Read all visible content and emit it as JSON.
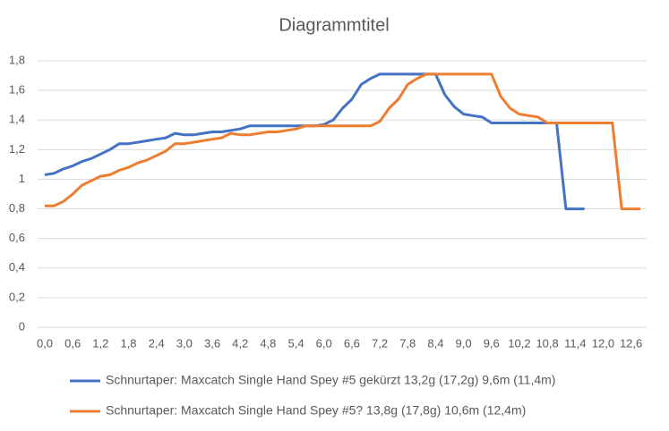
{
  "chart_data": {
    "type": "line",
    "title": "Diagrammtitel",
    "categories": [
      "0,0",
      null,
      null,
      "0,6",
      null,
      null,
      "1,2",
      null,
      null,
      "1,8",
      null,
      null,
      "2,4",
      null,
      null,
      "3,0",
      null,
      null,
      "3,6",
      null,
      null,
      "4,2",
      null,
      null,
      "4,8",
      null,
      null,
      "5,4",
      null,
      null,
      "6,0",
      null,
      null,
      "6,6",
      null,
      null,
      "7,2",
      null,
      null,
      "7,8",
      null,
      null,
      "8,4",
      null,
      null,
      "9,0",
      null,
      null,
      "9,6",
      null,
      null,
      "10,2",
      null,
      null,
      "10,8",
      null,
      null,
      "11,4",
      null,
      null,
      "12,0",
      null,
      null,
      "12,6",
      null
    ],
    "series": [
      {
        "name": "Schnurtaper: Maxcatch Single Hand Spey #5 gekürzt 13,2g (17,2g) 9,6m (11,4m)",
        "color": "#4472c4",
        "values": [
          1.03,
          1.04,
          1.07,
          1.09,
          1.12,
          1.14,
          1.17,
          1.2,
          1.24,
          1.24,
          1.25,
          1.26,
          1.27,
          1.28,
          1.31,
          1.3,
          1.3,
          1.31,
          1.32,
          1.32,
          1.33,
          1.34,
          1.36,
          1.36,
          1.36,
          1.36,
          1.36,
          1.36,
          1.36,
          1.36,
          1.37,
          1.4,
          1.48,
          1.54,
          1.64,
          1.68,
          1.71,
          1.71,
          1.71,
          1.71,
          1.71,
          1.71,
          1.71,
          1.57,
          1.49,
          1.44,
          1.43,
          1.42,
          1.38,
          1.38,
          1.38,
          1.38,
          1.38,
          1.38,
          1.38,
          1.38,
          0.8,
          0.8,
          0.8,
          null,
          null,
          null,
          null,
          null,
          null
        ]
      },
      {
        "name": "Schnurtaper: Maxcatch Single Hand Spey #5? 13,8g (17,8g)  10,6m (12,4m)",
        "color": "#ed7d31",
        "values": [
          0.82,
          0.82,
          0.85,
          0.9,
          0.96,
          0.99,
          1.02,
          1.03,
          1.06,
          1.08,
          1.11,
          1.13,
          1.16,
          1.19,
          1.24,
          1.24,
          1.25,
          1.26,
          1.27,
          1.28,
          1.31,
          1.3,
          1.3,
          1.31,
          1.32,
          1.32,
          1.33,
          1.34,
          1.36,
          1.36,
          1.36,
          1.36,
          1.36,
          1.36,
          1.36,
          1.36,
          1.39,
          1.48,
          1.54,
          1.64,
          1.68,
          1.71,
          1.71,
          1.71,
          1.71,
          1.71,
          1.71,
          1.71,
          1.71,
          1.56,
          1.48,
          1.44,
          1.43,
          1.42,
          1.38,
          1.38,
          1.38,
          1.38,
          1.38,
          1.38,
          1.38,
          1.38,
          0.8,
          0.8,
          0.8
        ]
      }
    ],
    "ylim": [
      0,
      1.8
    ],
    "yticks": [
      0,
      {
        "value": 0.2,
        "label": "0,2"
      },
      {
        "value": 0.4,
        "label": "0,4"
      },
      {
        "value": 0.6,
        "label": "0,6"
      },
      {
        "value": 0.8,
        "label": "0,8"
      },
      1,
      {
        "value": 1.2,
        "label": "1,2"
      },
      {
        "value": 1.4,
        "label": "1,4"
      },
      {
        "value": 1.6,
        "label": "1,6"
      },
      {
        "value": 1.8,
        "label": "1,8"
      }
    ],
    "grid": true,
    "legend": "bottom"
  }
}
